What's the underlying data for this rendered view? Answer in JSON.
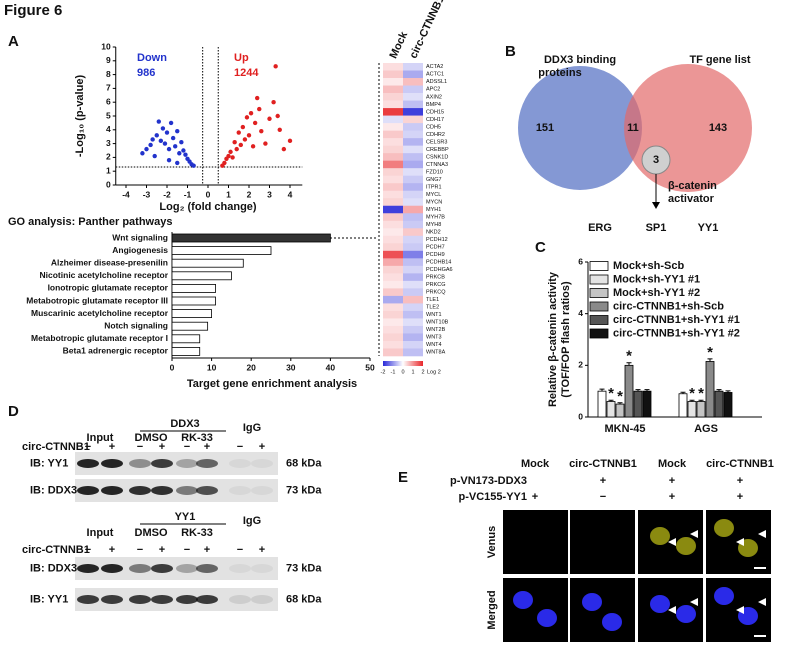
{
  "figure_title": "Figure 6",
  "panel_labels": [
    "A",
    "B",
    "C",
    "D",
    "E"
  ],
  "chart_data": [
    {
      "type": "scatter",
      "xlabel": "Log₂ (fold change)",
      "ylabel": "-Log₁₀ (p-value)",
      "xlim": [
        -4.5,
        4.6
      ],
      "xticks": [
        -4,
        -3,
        -2,
        -1,
        0,
        1,
        2,
        3,
        4
      ],
      "ylim": [
        0,
        10
      ],
      "yticks": [
        0,
        1,
        2,
        3,
        4,
        5,
        6,
        7,
        8,
        9,
        10
      ],
      "thresholds_x": [
        -0.26,
        0.5
      ],
      "threshold_y": 1.3,
      "annotations": [
        {
          "text": "Down",
          "color": "#2233cc"
        },
        {
          "text": "986",
          "color": "#2233cc"
        },
        {
          "text": "Up",
          "color": "#e02020"
        },
        {
          "text": "1244",
          "color": "#e02020"
        }
      ],
      "series": [
        {
          "color": "#2233cc",
          "x": [
            -3.2,
            -3.0,
            -2.8,
            -2.7,
            -2.5,
            -2.4,
            -2.3,
            -2.2,
            -2.1,
            -2.0,
            -1.9,
            -1.8,
            -1.7,
            -1.6,
            -1.5,
            -1.4,
            -1.3,
            -1.2,
            -1.1,
            -1.0,
            -0.9,
            -0.8,
            -0.7,
            -2.6,
            -1.9,
            -1.5
          ],
          "y": [
            2.3,
            2.6,
            2.9,
            3.3,
            3.6,
            4.6,
            3.2,
            4.1,
            3.0,
            3.8,
            2.6,
            4.5,
            3.4,
            2.8,
            3.9,
            2.3,
            3.1,
            2.5,
            2.2,
            1.9,
            1.7,
            1.5,
            1.4,
            2.1,
            1.8,
            1.6
          ]
        },
        {
          "color": "#e02020",
          "x": [
            0.7,
            0.8,
            0.9,
            1.0,
            1.1,
            1.2,
            1.3,
            1.4,
            1.5,
            1.6,
            1.7,
            1.8,
            1.9,
            2.0,
            2.1,
            2.2,
            2.3,
            2.5,
            2.6,
            2.8,
            3.0,
            3.2,
            3.3,
            3.5,
            3.7,
            4.0,
            3.4,
            2.4
          ],
          "y": [
            1.4,
            1.6,
            1.9,
            2.1,
            2.4,
            2.0,
            3.1,
            2.6,
            3.8,
            2.9,
            4.2,
            3.3,
            4.9,
            3.6,
            5.2,
            2.8,
            4.5,
            5.5,
            3.9,
            3.0,
            4.8,
            6.0,
            8.6,
            4.0,
            2.6,
            3.2,
            5.0,
            6.3
          ]
        }
      ]
    },
    {
      "type": "hbar",
      "title": "GO analysis: Panther pathways",
      "xlabel": "Target gene enrichment analysis",
      "categories": [
        "Wnt signaling",
        "Angiogenesis",
        "Alzheimer disease-presenilin",
        "Nicotinic acetylcholine receptor",
        "Ionotropic glutamate receptor",
        "Metabotropic glutamate receptor III",
        "Muscarinic acetylcholine receptor",
        "Notch signaling",
        "Metabotropic glutamate receptor I",
        "Beta1 adrenergic receptor"
      ],
      "values": [
        40,
        25,
        18,
        15,
        11,
        11,
        10,
        9,
        7,
        7
      ],
      "colors": [
        "#333333",
        "#ffffff",
        "#ffffff",
        "#ffffff",
        "#ffffff",
        "#ffffff",
        "#ffffff",
        "#ffffff",
        "#ffffff",
        "#ffffff"
      ],
      "xlim": [
        0,
        50
      ],
      "xticks": [
        0,
        10,
        20,
        30,
        40,
        50
      ]
    },
    {
      "type": "heatmap",
      "rows": [
        "ACTA2",
        "ACTC1",
        "ADSSL1",
        "APC2",
        "AXIN2",
        "BMP4",
        "CDH15",
        "CDH17",
        "CDH5",
        "CDHR2",
        "CELSR3",
        "CREBBP",
        "CSNK1D",
        "CTNNA3",
        "FZD10",
        "GNG7",
        "ITPR1",
        "MYCL",
        "MYCN",
        "MYH1",
        "MYH7B",
        "MYH8",
        "NKD2",
        "PCDH12",
        "PCDH7",
        "PCDH9",
        "PCDHB14",
        "PCDHGA6",
        "PRKCB",
        "PRKCG",
        "PRKCQ",
        "TLE1",
        "TLE2",
        "WNT1",
        "WNT10B",
        "WNT2B",
        "WNT3",
        "WNT4",
        "WNT8A"
      ],
      "series": [
        {
          "name": "Mock",
          "values": [
            0.3,
            0.5,
            0.2,
            0.6,
            0.4,
            0.3,
            1.8,
            -0.3,
            0.2,
            0.5,
            0.3,
            0.4,
            0.6,
            1.2,
            0.4,
            0.3,
            0.5,
            0.3,
            0.4,
            -1.8,
            0.5,
            0.3,
            0.2,
            0.3,
            0.4,
            1.6,
            0.8,
            0.4,
            0.3,
            0.2,
            0.5,
            -0.8,
            0.3,
            0.4,
            0.2,
            0.3,
            0.4,
            0.3,
            0.5
          ]
        },
        {
          "name": "circ-CTNNB1",
          "values": [
            -0.4,
            -0.8,
            0.6,
            -0.5,
            -0.3,
            -0.6,
            -1.8,
            0.4,
            -0.5,
            -0.4,
            -0.7,
            -0.3,
            -0.6,
            -0.8,
            -0.3,
            -0.5,
            -0.7,
            -0.4,
            -0.3,
            0.8,
            -0.6,
            -0.5,
            0.5,
            -0.4,
            -0.5,
            -1.2,
            -0.6,
            -0.4,
            -0.7,
            -0.3,
            -0.5,
            0.6,
            -0.4,
            -0.6,
            -0.3,
            -0.5,
            -0.7,
            -0.4,
            -0.6
          ]
        }
      ],
      "clim": [
        -2,
        2
      ],
      "colorbar_ticks": [
        -2,
        -1,
        0,
        1,
        2
      ],
      "colorbar_label": "Log 2",
      "low_color": "#2a2ad8",
      "high_color": "#e8262a"
    },
    {
      "type": "grouped_bar",
      "ylabel": [
        "Relative β-catenin activity",
        "(TOF/FOP flash ratios)"
      ],
      "categories": [
        "MKN-45",
        "AGS"
      ],
      "ylim": [
        0,
        6
      ],
      "yticks": [
        0,
        2,
        4,
        6
      ],
      "legend": "upper right",
      "series": [
        {
          "name": "Mock+sh-Scb",
          "color": "#ffffff",
          "values": [
            1.0,
            0.9
          ],
          "errors": [
            0.08,
            0.06
          ]
        },
        {
          "name": "Mock+sh-YY1 #1",
          "color": "#e4e4e4",
          "values": [
            0.6,
            0.6
          ],
          "errors": [
            0.05,
            0.05
          ],
          "significance": [
            "*",
            "*"
          ]
        },
        {
          "name": "Mock+sh-YY1 #2",
          "color": "#c4c4c4",
          "values": [
            0.5,
            0.6
          ],
          "errors": [
            0.05,
            0.05
          ],
          "significance": [
            "*",
            "*"
          ]
        },
        {
          "name": "circ-CTNNB1+sh-Scb",
          "color": "#8a8a8a",
          "values": [
            2.0,
            2.15
          ],
          "errors": [
            0.1,
            0.1
          ],
          "significance": [
            "*",
            "*"
          ]
        },
        {
          "name": "circ-CTNNB1+sh-YY1 #1",
          "color": "#555555",
          "values": [
            1.0,
            1.0
          ],
          "errors": [
            0.06,
            0.06
          ]
        },
        {
          "name": "circ-CTNNB1+sh-YY1 #2",
          "color": "#111111",
          "values": [
            1.0,
            0.95
          ],
          "errors": [
            0.06,
            0.06
          ]
        }
      ]
    }
  ],
  "venn": {
    "left_label": [
      "DDX3 binding",
      "proteins"
    ],
    "right_label": "TF gene list",
    "left_only": "151",
    "both": "11",
    "right_only": "143",
    "subset": "3",
    "subset_label": [
      "β-catenin",
      "activator"
    ],
    "subset_genes": [
      "ERG",
      "SP1",
      "YY1"
    ]
  },
  "blot_d": {
    "panels": [
      {
        "ip": "DDX3",
        "input": "Input",
        "treatments": [
          "DMSO",
          "RK-33"
        ],
        "control": "IgG",
        "row_label": "circ-CTNNB1",
        "signs": [
          "−",
          "+",
          "−",
          "+",
          "−",
          "+",
          "−",
          "+"
        ],
        "blots": [
          {
            "label": "IB: YY1",
            "size": "68 kDa"
          },
          {
            "label": "IB: DDX3",
            "size": "73 kDa"
          }
        ]
      },
      {
        "ip": "YY1",
        "input": "Input",
        "treatments": [
          "DMSO",
          "RK-33"
        ],
        "control": "IgG",
        "row_label": "circ-CTNNB1",
        "signs": [
          "−",
          "+",
          "−",
          "+",
          "−",
          "+",
          "−",
          "+"
        ],
        "blots": [
          {
            "label": "IB: DDX3",
            "size": "73 kDa"
          },
          {
            "label": "IB: YY1",
            "size": "68 kDa"
          }
        ]
      }
    ]
  },
  "imaging_e": {
    "columns": [
      "Mock",
      "circ-CTNNB1",
      "Mock",
      "circ-CTNNB1"
    ],
    "rows": [
      {
        "label": "p-VN173-DDX3",
        "signs": [
          null,
          "+",
          "+",
          "+"
        ]
      },
      {
        "label": "p-VC155-YY1",
        "signs": [
          "+",
          "−",
          "+",
          "+"
        ]
      }
    ],
    "image_rows": [
      "Venus",
      "Merged"
    ]
  }
}
